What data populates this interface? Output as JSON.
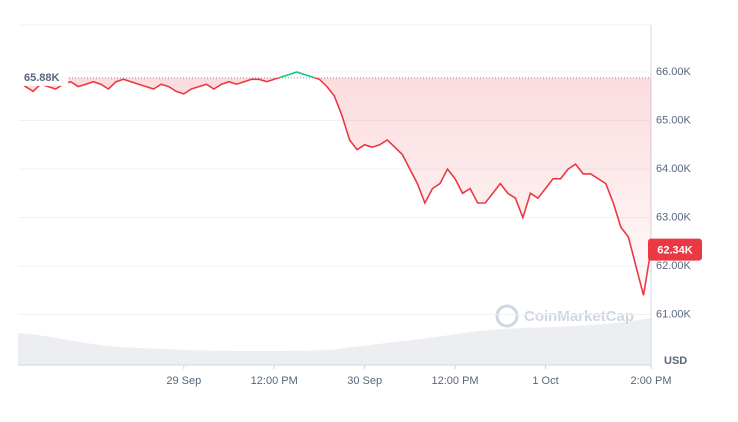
{
  "chart_data": {
    "type": "line",
    "y_unit": "USD",
    "watermark": "CoinMarketCap",
    "xlim": [
      0,
      84
    ],
    "xticks": [
      {
        "value": 22,
        "label": "29 Sep"
      },
      {
        "value": 34,
        "label": "12:00 PM"
      },
      {
        "value": 46,
        "label": "30 Sep"
      },
      {
        "value": 58,
        "label": "12:00 PM"
      },
      {
        "value": 70,
        "label": "1 Oct"
      },
      {
        "value": 84,
        "label": "2:00 PM"
      }
    ],
    "ylim": [
      59960,
      66970
    ],
    "yticks": [
      {
        "value": 61000,
        "label": "61.00K"
      },
      {
        "value": 62000,
        "label": "62.00K"
      },
      {
        "value": 63000,
        "label": "63.00K"
      },
      {
        "value": 64000,
        "label": "64.00K"
      },
      {
        "value": 65000,
        "label": "65.00K"
      },
      {
        "value": 66000,
        "label": "66.00K"
      }
    ],
    "grid": true,
    "reference": {
      "value": 65880,
      "label": "65.88K"
    },
    "last": {
      "value": 62340,
      "label": "62.34K"
    },
    "series": [
      {
        "color": "#ea3943",
        "color_above_reference": "#16c784",
        "values": [
          65850,
          65700,
          65600,
          65750,
          65700,
          65650,
          65750,
          65800,
          65700,
          65750,
          65800,
          65750,
          65650,
          65800,
          65850,
          65800,
          65750,
          65700,
          65650,
          65750,
          65700,
          65600,
          65550,
          65650,
          65700,
          65750,
          65650,
          65750,
          65800,
          65750,
          65800,
          65850,
          65850,
          65800,
          65850,
          65900,
          65950,
          66000,
          65950,
          65900,
          65850,
          65700,
          65500,
          65100,
          64600,
          64400,
          64500,
          64450,
          64500,
          64600,
          64450,
          64300,
          64000,
          63700,
          63300,
          63600,
          63700,
          64000,
          63800,
          63500,
          63600,
          63300,
          63300,
          63500,
          63700,
          63500,
          63400,
          63000,
          63500,
          63400,
          63600,
          63800,
          63800,
          64000,
          64100,
          63900,
          63900,
          63800,
          63700,
          63300,
          62800,
          62600,
          62000,
          61400,
          62340
        ]
      }
    ]
  }
}
